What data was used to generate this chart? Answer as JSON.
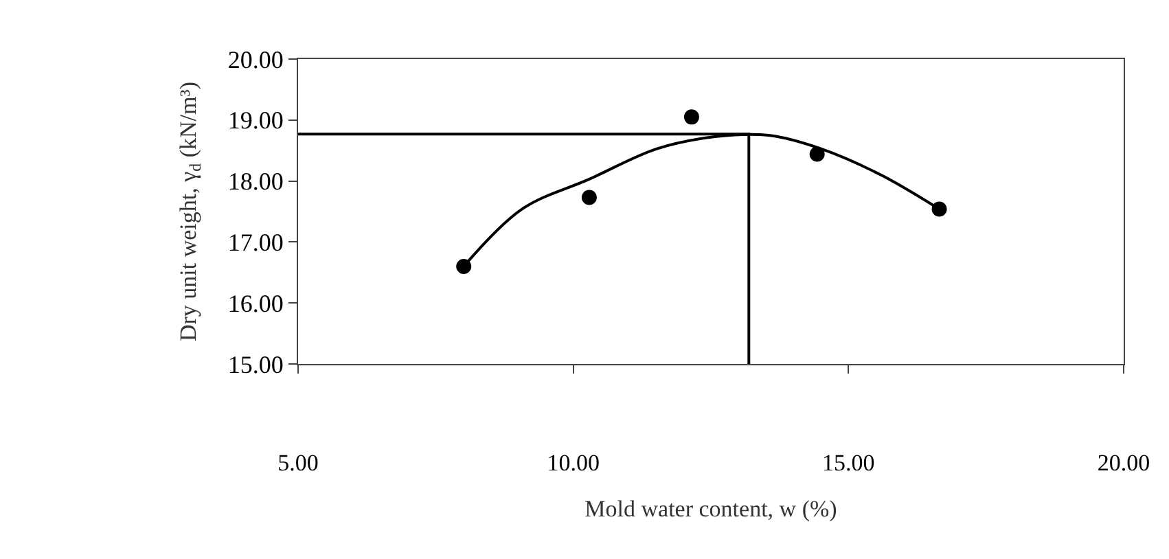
{
  "chart_data": {
    "type": "scatter",
    "xlabel": "Mold water content, w (%)",
    "ylabel": "Dry unit weight, γ$_{d}$ (kN/m³)",
    "xlim": [
      5,
      20
    ],
    "xticks": [
      {
        "value": 5,
        "label": "5.00"
      },
      {
        "value": 10,
        "label": "10.00"
      },
      {
        "value": 15,
        "label": "15.00"
      },
      {
        "value": 20,
        "label": "20.00"
      }
    ],
    "ylim": [
      15,
      20
    ],
    "yticks": [
      {
        "value": 15,
        "label": "15.00"
      },
      {
        "value": 16,
        "label": "16.00"
      },
      {
        "value": 17,
        "label": "17.00"
      },
      {
        "value": 18,
        "label": "18.00"
      },
      {
        "value": 19,
        "label": "19.00"
      },
      {
        "value": 20,
        "label": "20.00"
      }
    ],
    "grid": false,
    "legend": false,
    "series": [
      {
        "color": "#000000",
        "marker": "circle",
        "x": [
          8.01,
          10.29,
          12.15,
          14.43,
          16.65
        ],
        "values": [
          16.6,
          17.73,
          19.05,
          18.44,
          17.54
        ]
      },
      {
        "type": "line",
        "color": "#000000",
        "marker": "none",
        "line_style": "solid",
        "x": [
          8.01,
          9.07,
          10.29,
          11.52,
          12.6,
          13.55,
          14.5,
          15.59,
          16.65
        ],
        "values": [
          16.6,
          17.54,
          18.03,
          18.53,
          18.73,
          18.75,
          18.53,
          18.1,
          17.54
        ]
      },
      {
        "type": "line",
        "color": "#000000",
        "marker": "none",
        "line_style": "solid",
        "x": [
          5,
          13.19,
          13.19
        ],
        "values": [
          18.77,
          18.77,
          15
        ]
      }
    ]
  }
}
